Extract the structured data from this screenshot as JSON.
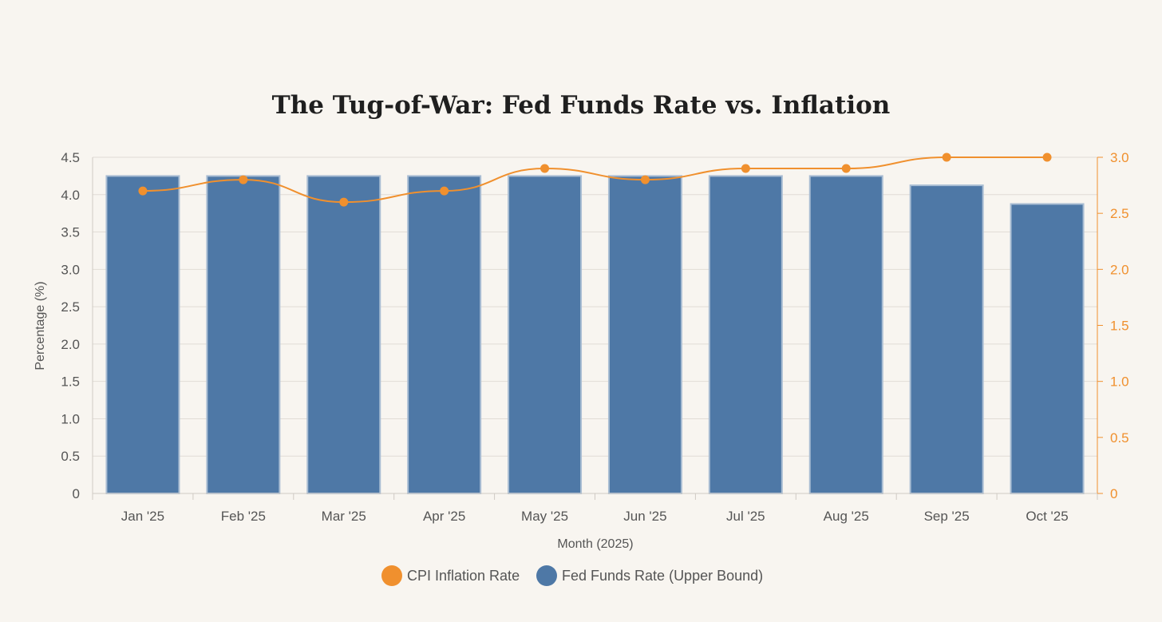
{
  "chart_data": {
    "type": "bar",
    "title": "The Tug-of-War: Fed Funds Rate vs. Inflation",
    "xlabel": "Month (2025)",
    "ylabel": "Percentage (%)",
    "y2label": "",
    "ylim": [
      0,
      4.5
    ],
    "y2lim": [
      0,
      3.0
    ],
    "yticks": [
      "0",
      "0.5",
      "1.0",
      "1.5",
      "2.0",
      "2.5",
      "3.0",
      "3.5",
      "4.0",
      "4.5"
    ],
    "y2ticks": [
      "0",
      "0.5",
      "1.0",
      "1.5",
      "2.0",
      "2.5",
      "3.0"
    ],
    "grid": true,
    "legend_position": "bottom",
    "categories": [
      "Jan '25",
      "Feb '25",
      "Mar '25",
      "Apr '25",
      "May '25",
      "Jun '25",
      "Jul '25",
      "Aug '25",
      "Sep '25",
      "Oct '25"
    ],
    "series": [
      {
        "name": "CPI Inflation Rate",
        "kind": "line",
        "axis": "right",
        "color": "#f0902e",
        "values": [
          2.7,
          2.8,
          2.6,
          2.7,
          2.9,
          2.8,
          2.9,
          2.9,
          3.0,
          3.0
        ]
      },
      {
        "name": "Fed Funds Rate (Upper Bound)",
        "kind": "bar",
        "axis": "left",
        "color": "#4e78a6",
        "values": [
          4.25,
          4.25,
          4.25,
          4.25,
          4.25,
          4.25,
          4.25,
          4.25,
          4.125,
          3.875
        ]
      }
    ]
  }
}
